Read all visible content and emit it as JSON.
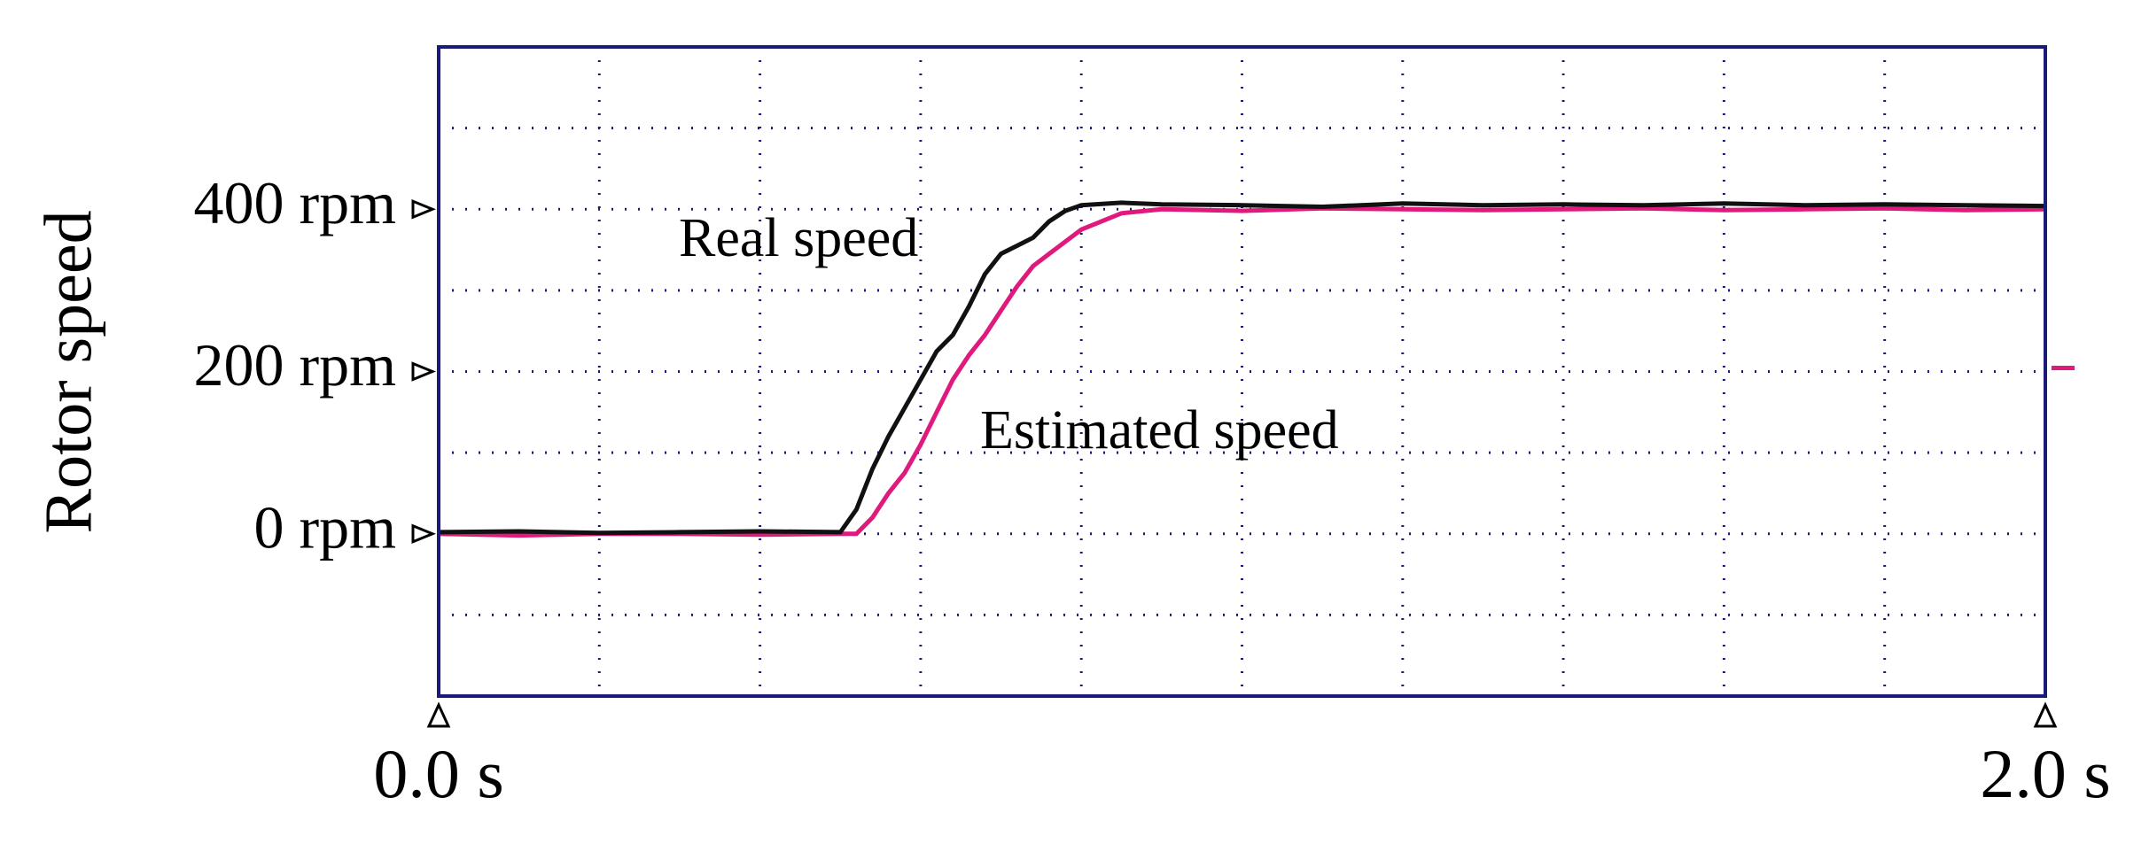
{
  "chart_data": {
    "type": "line",
    "y_label": "Rotor speed",
    "x": [
      0,
      0.1,
      0.2,
      0.3,
      0.4,
      0.5,
      0.52,
      0.54,
      0.56,
      0.58,
      0.6,
      0.62,
      0.64,
      0.66,
      0.68,
      0.7,
      0.72,
      0.74,
      0.76,
      0.78,
      0.8,
      0.85,
      0.9,
      1.0,
      1.1,
      1.2,
      1.3,
      1.4,
      1.5,
      1.6,
      1.7,
      1.8,
      1.9,
      2.0
    ],
    "series": [
      {
        "name": "Real speed",
        "color": "#111111",
        "values": [
          2,
          3,
          1,
          2,
          3,
          2,
          30,
          80,
          120,
          155,
          190,
          225,
          245,
          280,
          320,
          345,
          355,
          365,
          385,
          398,
          405,
          408,
          406,
          405,
          403,
          407,
          405,
          406,
          405,
          407,
          405,
          406,
          405,
          404
        ]
      },
      {
        "name": "Estimated speed",
        "color": "#e0197d",
        "values": [
          0,
          -2,
          0,
          0,
          -1,
          0,
          0,
          20,
          50,
          75,
          110,
          150,
          190,
          220,
          245,
          275,
          305,
          330,
          345,
          360,
          375,
          395,
          400,
          398,
          401,
          400,
          399,
          400,
          401,
          399,
          400,
          401,
          399,
          400
        ]
      }
    ],
    "xlim": [
      0,
      2
    ],
    "ylim": [
      -200,
      600
    ],
    "xticks": [
      {
        "value": 0,
        "label": "0.0 s"
      },
      {
        "value": 2,
        "label": "2.0 s"
      }
    ],
    "yticks": [
      {
        "value": 0,
        "label": "0 rpm"
      },
      {
        "value": 200,
        "label": "200 rpm"
      },
      {
        "value": 400,
        "label": "400 rpm"
      }
    ],
    "grid": {
      "x_step": 0.2,
      "y_step": 100
    },
    "frame_color": "#1a1a7a"
  }
}
